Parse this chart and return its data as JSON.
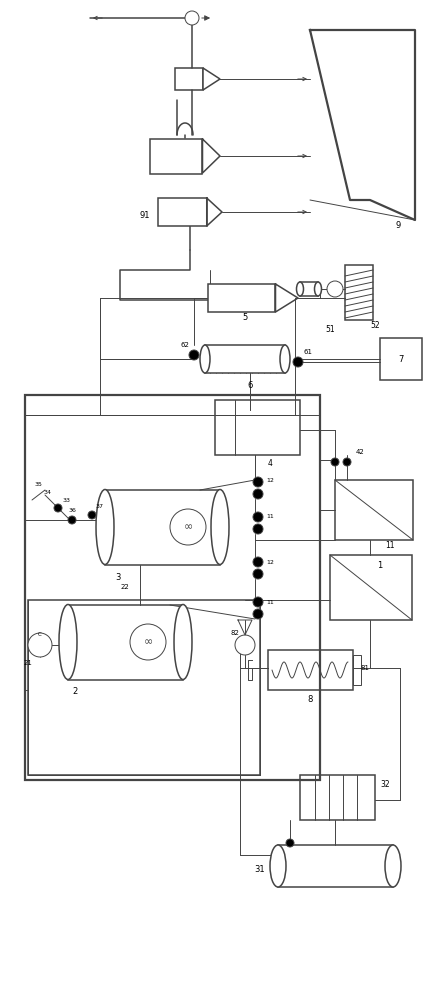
{
  "bg_color": "#ffffff",
  "lc": "#777777",
  "dc": "#444444",
  "fig_width": 4.27,
  "fig_height": 10.0,
  "dpi": 100
}
